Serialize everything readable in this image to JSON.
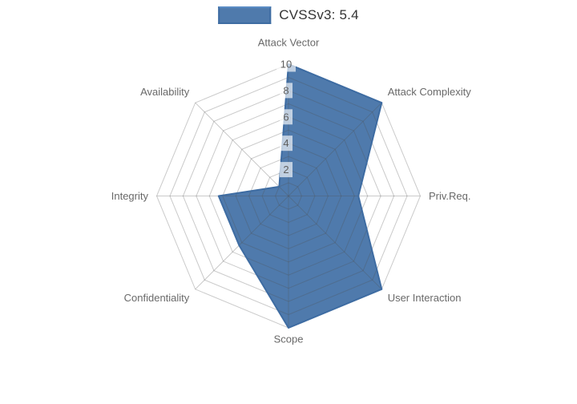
{
  "legend": {
    "label": "CVSSv3: 5.4",
    "swatch_icon": "filled-area-swatch"
  },
  "colors": {
    "series_fill": "rgba(70,115,168,0.95)",
    "series_line": "#3e6ca2",
    "series_line_hex": "#3e6ca2",
    "grid_line": "rgba(80,80,80,0.30)",
    "axis_label": "#696969",
    "tick_label": "#5e5e5e",
    "tick_background": "rgba(255,255,255,0.65)",
    "legend_text": "#333333",
    "background": "#ffffff"
  },
  "chart_data": {
    "type": "radar",
    "title": "",
    "legend_entries": [
      "CVSSv3: 5.4"
    ],
    "legend_position": "top-center",
    "categories": [
      "Attack Vector",
      "Attack Complexity",
      "Priv.Req.",
      "User Interaction",
      "Scope",
      "Confidentiality",
      "Integrity",
      "Availability"
    ],
    "series": [
      {
        "name": "CVSSv3: 5.4",
        "values": [
          10,
          10,
          5.3,
          10,
          10,
          5.3,
          5.3,
          1
        ]
      }
    ],
    "r_axis": {
      "range": [
        0,
        10
      ],
      "tick_labels": [
        "2",
        "4",
        "6",
        "8",
        "10"
      ],
      "tick_values": [
        2,
        4,
        6,
        8,
        10
      ],
      "grid_step": 1,
      "tick_position": "top-axis"
    },
    "start_axis": "top",
    "direction": "clockwise",
    "grid": true,
    "grid_shape": "polygon"
  }
}
